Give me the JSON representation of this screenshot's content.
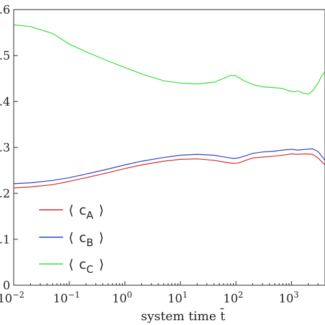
{
  "chart_data": {
    "type": "line",
    "title": "",
    "xlabel": "system time t̄",
    "ylabel": "",
    "xscale": "log",
    "xlim": [
      0.01,
      4000
    ],
    "ylim": [
      0,
      0.6
    ],
    "grid": false,
    "legend_position": "bottom-left",
    "x_ticks": [
      {
        "value": 0.01,
        "base": "10",
        "exp": "−2"
      },
      {
        "value": 0.1,
        "base": "10",
        "exp": "−1"
      },
      {
        "value": 1,
        "base": "10",
        "exp": "0"
      },
      {
        "value": 10,
        "base": "10",
        "exp": "1"
      },
      {
        "value": 100,
        "base": "10",
        "exp": "2"
      },
      {
        "value": 1000,
        "base": "10",
        "exp": "3"
      }
    ],
    "y_ticks": [
      {
        "value": 0,
        "label": "0"
      },
      {
        "value": 0.1,
        "label": ".1"
      },
      {
        "value": 0.2,
        "label": ".2"
      },
      {
        "value": 0.3,
        "label": ".3"
      },
      {
        "value": 0.4,
        "label": ".4"
      },
      {
        "value": 0.5,
        "label": ".5"
      },
      {
        "value": 0.6,
        "label": ".6"
      }
    ],
    "series": [
      {
        "name": "⟨ c_A ⟩",
        "label_open": "⟨",
        "label_main": "c",
        "label_sub": "A",
        "label_close": "⟩",
        "color": "#d62728",
        "points": [
          [
            0.01,
            0.212
          ],
          [
            0.02,
            0.214
          ],
          [
            0.05,
            0.219
          ],
          [
            0.1,
            0.226
          ],
          [
            0.2,
            0.234
          ],
          [
            0.5,
            0.245
          ],
          [
            1,
            0.254
          ],
          [
            2,
            0.262
          ],
          [
            5,
            0.27
          ],
          [
            10,
            0.274
          ],
          [
            20,
            0.275
          ],
          [
            40,
            0.272
          ],
          [
            70,
            0.267
          ],
          [
            90,
            0.265
          ],
          [
            110,
            0.266
          ],
          [
            150,
            0.272
          ],
          [
            200,
            0.277
          ],
          [
            300,
            0.279
          ],
          [
            500,
            0.281
          ],
          [
            800,
            0.284
          ],
          [
            1000,
            0.286
          ],
          [
            1300,
            0.285
          ],
          [
            1800,
            0.286
          ],
          [
            2400,
            0.285
          ],
          [
            3000,
            0.277
          ],
          [
            4000,
            0.262
          ]
        ]
      },
      {
        "name": "⟨ c_B ⟩",
        "label_open": "⟨",
        "label_main": "c",
        "label_sub": "B",
        "label_close": "⟩",
        "color": "#2b3fbf",
        "points": [
          [
            0.01,
            0.221
          ],
          [
            0.02,
            0.223
          ],
          [
            0.05,
            0.228
          ],
          [
            0.1,
            0.234
          ],
          [
            0.2,
            0.242
          ],
          [
            0.5,
            0.253
          ],
          [
            1,
            0.262
          ],
          [
            2,
            0.27
          ],
          [
            5,
            0.278
          ],
          [
            10,
            0.283
          ],
          [
            20,
            0.285
          ],
          [
            40,
            0.283
          ],
          [
            70,
            0.278
          ],
          [
            90,
            0.276
          ],
          [
            110,
            0.277
          ],
          [
            150,
            0.282
          ],
          [
            200,
            0.287
          ],
          [
            300,
            0.29
          ],
          [
            500,
            0.292
          ],
          [
            800,
            0.295
          ],
          [
            1000,
            0.296
          ],
          [
            1300,
            0.294
          ],
          [
            1800,
            0.296
          ],
          [
            2400,
            0.297
          ],
          [
            3000,
            0.291
          ],
          [
            4000,
            0.272
          ]
        ]
      },
      {
        "name": "⟨ c_C ⟩",
        "label_open": "⟨",
        "label_main": "c",
        "label_sub": "C",
        "label_close": "⟩",
        "color": "#33dd33",
        "points": [
          [
            0.01,
            0.567
          ],
          [
            0.02,
            0.563
          ],
          [
            0.05,
            0.548
          ],
          [
            0.1,
            0.525
          ],
          [
            0.2,
            0.508
          ],
          [
            0.5,
            0.488
          ],
          [
            1,
            0.474
          ],
          [
            2,
            0.46
          ],
          [
            5,
            0.445
          ],
          [
            10,
            0.44
          ],
          [
            20,
            0.438
          ],
          [
            40,
            0.442
          ],
          [
            60,
            0.45
          ],
          [
            80,
            0.457
          ],
          [
            100,
            0.456
          ],
          [
            130,
            0.447
          ],
          [
            200,
            0.437
          ],
          [
            300,
            0.432
          ],
          [
            500,
            0.43
          ],
          [
            700,
            0.428
          ],
          [
            900,
            0.423
          ],
          [
            1100,
            0.421
          ],
          [
            1300,
            0.423
          ],
          [
            1600,
            0.418
          ],
          [
            2000,
            0.416
          ],
          [
            2400,
            0.423
          ],
          [
            3000,
            0.44
          ],
          [
            3500,
            0.456
          ],
          [
            4000,
            0.465
          ]
        ]
      }
    ]
  }
}
